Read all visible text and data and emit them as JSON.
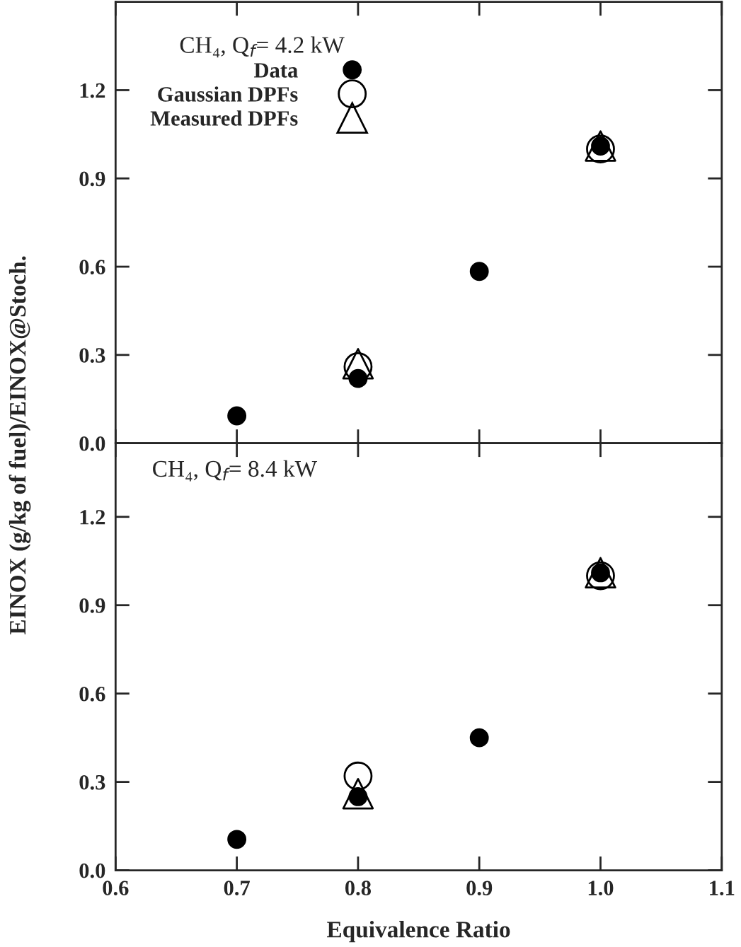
{
  "chart_data": [
    {
      "type": "scatter",
      "legend_title": "CH₄, Q$_{f}$= 4.2 kW",
      "ylabel": "EINOX (g/kg of fuel)/EINOX@Stoch.",
      "x": [
        0.7,
        0.8,
        0.9,
        1.0
      ],
      "series": [
        {
          "name": "Data",
          "color": "#000000",
          "marker": "circle",
          "values": [
            0.093,
            0.22,
            0.584,
            1.01
          ]
        },
        {
          "name": "Gaussian DPFs",
          "color": "#000000",
          "marker": "circle-open",
          "values": [
            null,
            0.26,
            null,
            1.0
          ]
        },
        {
          "name": "Measured DPFs",
          "color": "#000000",
          "marker": "triangle-open",
          "values": [
            null,
            0.27,
            null,
            1.01
          ]
        }
      ],
      "xlim": [
        0.6,
        1.1
      ],
      "ylim": [
        0,
        1.5
      ],
      "yticks": [
        {
          "value": 0,
          "label": "0.0"
        },
        0.3,
        0.6,
        0.9,
        1.2
      ],
      "xticks": [
        0.6,
        0.7,
        0.8,
        0.9,
        1.0,
        1.1
      ],
      "tick_labels": "y",
      "legend": "top left",
      "grid": false
    },
    {
      "type": "scatter",
      "annotations": [
        "CH₄, Q$_{f}$= 8.4 kW"
      ],
      "xlabel": "Equivalence Ratio",
      "x": [
        0.7,
        0.8,
        0.9,
        1.0
      ],
      "series": [
        {
          "color": "#000000",
          "marker": "circle",
          "values": [
            0.105,
            0.25,
            0.45,
            1.01
          ]
        },
        {
          "color": "#000000",
          "marker": "circle-open",
          "values": [
            null,
            0.32,
            null,
            1.0
          ]
        },
        {
          "color": "#000000",
          "marker": "triangle-open",
          "values": [
            null,
            0.26,
            null,
            1.01
          ]
        }
      ],
      "xlim": [
        0.6,
        1.1
      ],
      "ylim": [
        0,
        1.45
      ],
      "yticks": [
        {
          "value": 0,
          "label": "0.0"
        },
        0.3,
        0.6,
        0.9,
        1.2
      ],
      "xticks": [
        0.6,
        0.7,
        0.8,
        0.9,
        {
          "value": 1.0,
          "label": "1.0"
        },
        1.1
      ],
      "legend": false,
      "grid": false
    }
  ]
}
